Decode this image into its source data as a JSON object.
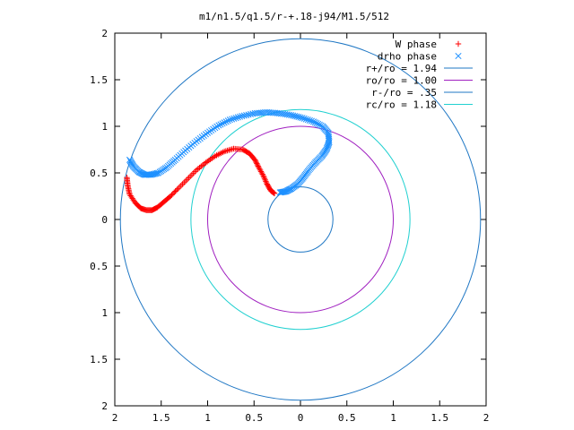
{
  "chart_data": {
    "type": "scatter",
    "title": "m1/n1.5/q1.5/r-+.18-j94/M1.5/512",
    "xlim": [
      -2,
      2
    ],
    "ylim": [
      -2,
      2
    ],
    "x_ticks": [
      {
        "v": -2,
        "label": "2"
      },
      {
        "v": -1.5,
        "label": "1.5"
      },
      {
        "v": -1,
        "label": "1"
      },
      {
        "v": -0.5,
        "label": "0.5"
      },
      {
        "v": 0,
        "label": "0"
      },
      {
        "v": 0.5,
        "label": "0.5"
      },
      {
        "v": 1,
        "label": "1"
      },
      {
        "v": 1.5,
        "label": "1.5"
      },
      {
        "v": 2,
        "label": "2"
      }
    ],
    "y_ticks": [
      {
        "v": 2,
        "label": "2"
      },
      {
        "v": 1.5,
        "label": "1.5"
      },
      {
        "v": 1,
        "label": "1"
      },
      {
        "v": 0.5,
        "label": "0.5"
      },
      {
        "v": 0,
        "label": "0"
      },
      {
        "v": -0.5,
        "label": "0.5"
      },
      {
        "v": -1,
        "label": "1"
      },
      {
        "v": -1.5,
        "label": "1.5"
      },
      {
        "v": -2,
        "label": "2"
      }
    ],
    "grid": false,
    "legend_position": "top-right",
    "circles": [
      {
        "name": "r+/ro = 1.94",
        "r": 1.94,
        "color": "#1f77c4"
      },
      {
        "name": "ro/ro = 1.00",
        "r": 1.0,
        "color": "#a020c0"
      },
      {
        "name": "r-/ro = .35",
        "r": 0.35,
        "color": "#1f77c4"
      },
      {
        "name": "rc/ro = 1.18",
        "r": 1.18,
        "color": "#20d0d0"
      }
    ],
    "series": [
      {
        "name": "W phase",
        "marker": "+",
        "color": "#ff0000",
        "points": [
          [
            -1.87,
            0.45
          ],
          [
            -1.86,
            0.36
          ],
          [
            -1.84,
            0.27
          ],
          [
            -1.78,
            0.18
          ],
          [
            -1.72,
            0.12
          ],
          [
            -1.66,
            0.1
          ],
          [
            -1.6,
            0.1
          ],
          [
            -1.54,
            0.13
          ],
          [
            -1.47,
            0.19
          ],
          [
            -1.4,
            0.25
          ],
          [
            -1.32,
            0.33
          ],
          [
            -1.22,
            0.43
          ],
          [
            -1.12,
            0.53
          ],
          [
            -1.02,
            0.61
          ],
          [
            -0.92,
            0.68
          ],
          [
            -0.82,
            0.73
          ],
          [
            -0.72,
            0.76
          ],
          [
            -0.62,
            0.75
          ],
          [
            -0.55,
            0.71
          ],
          [
            -0.49,
            0.64
          ],
          [
            -0.45,
            0.56
          ],
          [
            -0.4,
            0.47
          ],
          [
            -0.36,
            0.38
          ],
          [
            -0.32,
            0.31
          ],
          [
            -0.28,
            0.28
          ]
        ]
      },
      {
        "name": "drho phase",
        "marker": "x",
        "color": "#1e90ff",
        "points": [
          [
            -1.84,
            0.64
          ],
          [
            -1.8,
            0.57
          ],
          [
            -1.74,
            0.51
          ],
          [
            -1.68,
            0.48
          ],
          [
            -1.61,
            0.48
          ],
          [
            -1.53,
            0.5
          ],
          [
            -1.44,
            0.56
          ],
          [
            -1.35,
            0.64
          ],
          [
            -1.24,
            0.74
          ],
          [
            -1.12,
            0.84
          ],
          [
            -1.0,
            0.93
          ],
          [
            -0.88,
            1.01
          ],
          [
            -0.76,
            1.07
          ],
          [
            -0.63,
            1.11
          ],
          [
            -0.49,
            1.14
          ],
          [
            -0.36,
            1.15
          ],
          [
            -0.23,
            1.14
          ],
          [
            -0.1,
            1.12
          ],
          [
            0.02,
            1.09
          ],
          [
            0.14,
            1.05
          ],
          [
            0.24,
            1.0
          ],
          [
            0.3,
            0.93
          ],
          [
            0.31,
            0.83
          ],
          [
            0.28,
            0.75
          ],
          [
            0.23,
            0.68
          ],
          [
            0.16,
            0.61
          ],
          [
            0.09,
            0.53
          ],
          [
            0.03,
            0.45
          ],
          [
            -0.03,
            0.38
          ],
          [
            -0.1,
            0.33
          ],
          [
            -0.16,
            0.3
          ],
          [
            -0.22,
            0.29
          ]
        ]
      }
    ]
  }
}
